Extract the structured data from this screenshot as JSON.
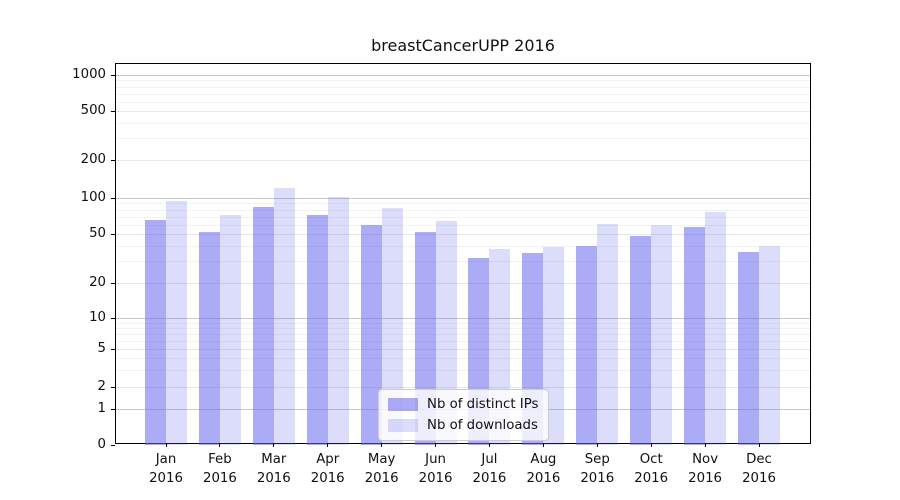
{
  "chart_data": {
    "type": "bar",
    "title": "breastCancerUPP 2016",
    "categories": [
      "Jan",
      "Feb",
      "Mar",
      "Apr",
      "May",
      "Jun",
      "Jul",
      "Aug",
      "Sep",
      "Oct",
      "Nov",
      "Dec"
    ],
    "x_year_label": "2016",
    "series": [
      {
        "name": "Nb of distinct IPs",
        "rgb": "102,102,238",
        "alpha": 0.55,
        "hex_on_white": "#aaaaf5",
        "values": [
          65,
          52,
          84,
          72,
          59,
          52,
          32,
          35,
          40,
          48,
          57,
          36
        ]
      },
      {
        "name": "Nb of downloads",
        "rgb": "102,102,238",
        "alpha": 0.23,
        "hex_on_white": "#dcdcf8",
        "values": [
          94,
          72,
          120,
          102,
          82,
          64,
          38,
          39,
          61,
          60,
          76,
          40
        ]
      }
    ],
    "y_ticks": [
      0,
      1,
      2,
      5,
      10,
      20,
      50,
      100,
      200,
      500,
      1000
    ],
    "y_scale": "log-like (symlog, linear below 1)",
    "ylim": [
      0,
      1300
    ],
    "grid": true,
    "grid_emphasis_color": "#c9c9c9",
    "grid_major_color": "#e7e7e7",
    "grid_minor_color": "#f2f2f2",
    "legend": {
      "position": "bottom-center",
      "entries": [
        "Nb of distinct IPs",
        "Nb of downloads"
      ]
    }
  }
}
